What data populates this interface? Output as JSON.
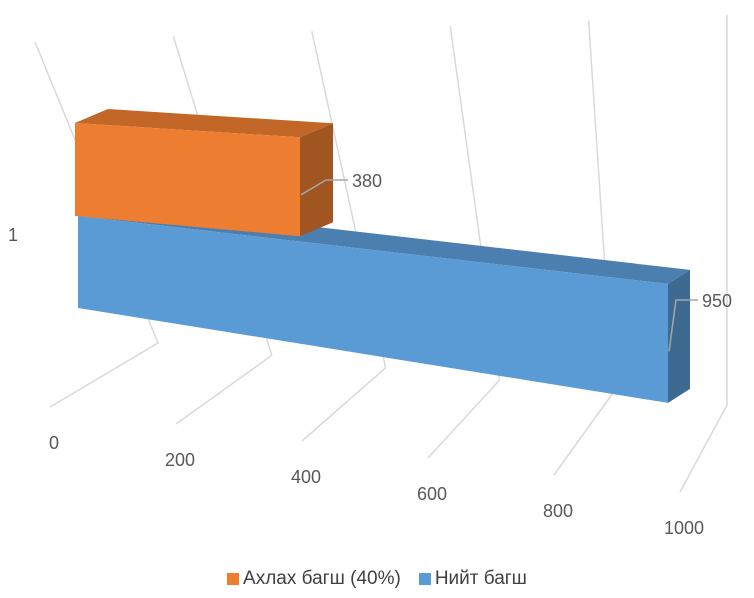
{
  "chart_data": {
    "type": "bar",
    "orientation": "horizontal",
    "style": "3d",
    "categories": [
      "1"
    ],
    "xlim": [
      0,
      1000
    ],
    "x_ticks": [
      0,
      200,
      400,
      600,
      800,
      1000
    ],
    "grid": true,
    "legend_position": "bottom",
    "series": [
      {
        "name": "Ахлах багш (40%)",
        "values": [
          380
        ],
        "color": "#ED7D31",
        "data_labels": [
          "380"
        ]
      },
      {
        "name": "Нийт багш",
        "values": [
          950
        ],
        "color": "#5B9BD5",
        "data_labels": [
          "950"
        ]
      }
    ],
    "x_tick_labels": [
      "0",
      "200",
      "400",
      "600",
      "800",
      "1000"
    ]
  }
}
